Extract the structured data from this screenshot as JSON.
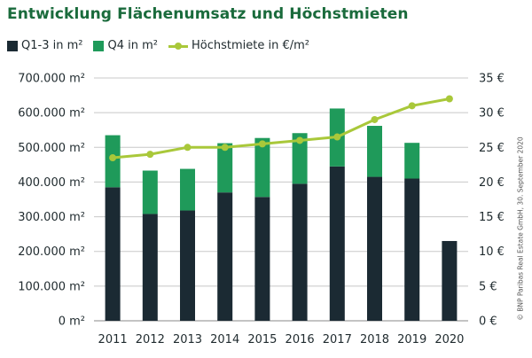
{
  "colors": {
    "q13": "#1b2a33",
    "q4": "#1f9a5a",
    "line": "#a9c83a",
    "title": "#1a6b3c",
    "text": "#1f2a2e",
    "grid": "#c8c8c8"
  },
  "chart_data": {
    "type": "bar",
    "stacked": true,
    "title": "Entwicklung Flächenumsatz und Höchstmieten",
    "categories": [
      "2011",
      "2012",
      "2013",
      "2014",
      "2015",
      "2016",
      "2017",
      "2018",
      "2019",
      "2020"
    ],
    "series": [
      {
        "name": "Q1-3 in m²",
        "type": "bar",
        "axis": "left",
        "color": "#1b2a33",
        "values": [
          385000,
          308000,
          318000,
          370000,
          357000,
          395000,
          445000,
          415000,
          410000,
          230000
        ]
      },
      {
        "name": "Q4 in m²",
        "type": "bar",
        "axis": "left",
        "color": "#1f9a5a",
        "values": [
          150000,
          125000,
          120000,
          142000,
          170000,
          146000,
          167000,
          147000,
          103000,
          null
        ]
      },
      {
        "name": "Höchstmiete in €/m²",
        "type": "line",
        "axis": "right",
        "color": "#a9c83a",
        "values": [
          23.5,
          24.0,
          25.0,
          25.0,
          25.5,
          26.0,
          26.5,
          29.0,
          31.0,
          32.0
        ]
      }
    ],
    "y_left": {
      "min": 0,
      "max": 700000,
      "step": 100000,
      "tick_labels": [
        "0 m²",
        "100.000 m²",
        "200.000 m²",
        "300.000 m²",
        "400.000 m²",
        "500.000 m²",
        "600.000 m²",
        "700.000 m²"
      ]
    },
    "y_right": {
      "min": 0,
      "max": 35,
      "step": 5,
      "tick_labels": [
        "0 €",
        "5 €",
        "10 €",
        "15 €",
        "20 €",
        "25 €",
        "30 €",
        "35 €"
      ]
    },
    "grid": true,
    "legend_position": "top-left",
    "source": "© BNP Paribas Real Estate GmbH, 30. September 2020"
  }
}
